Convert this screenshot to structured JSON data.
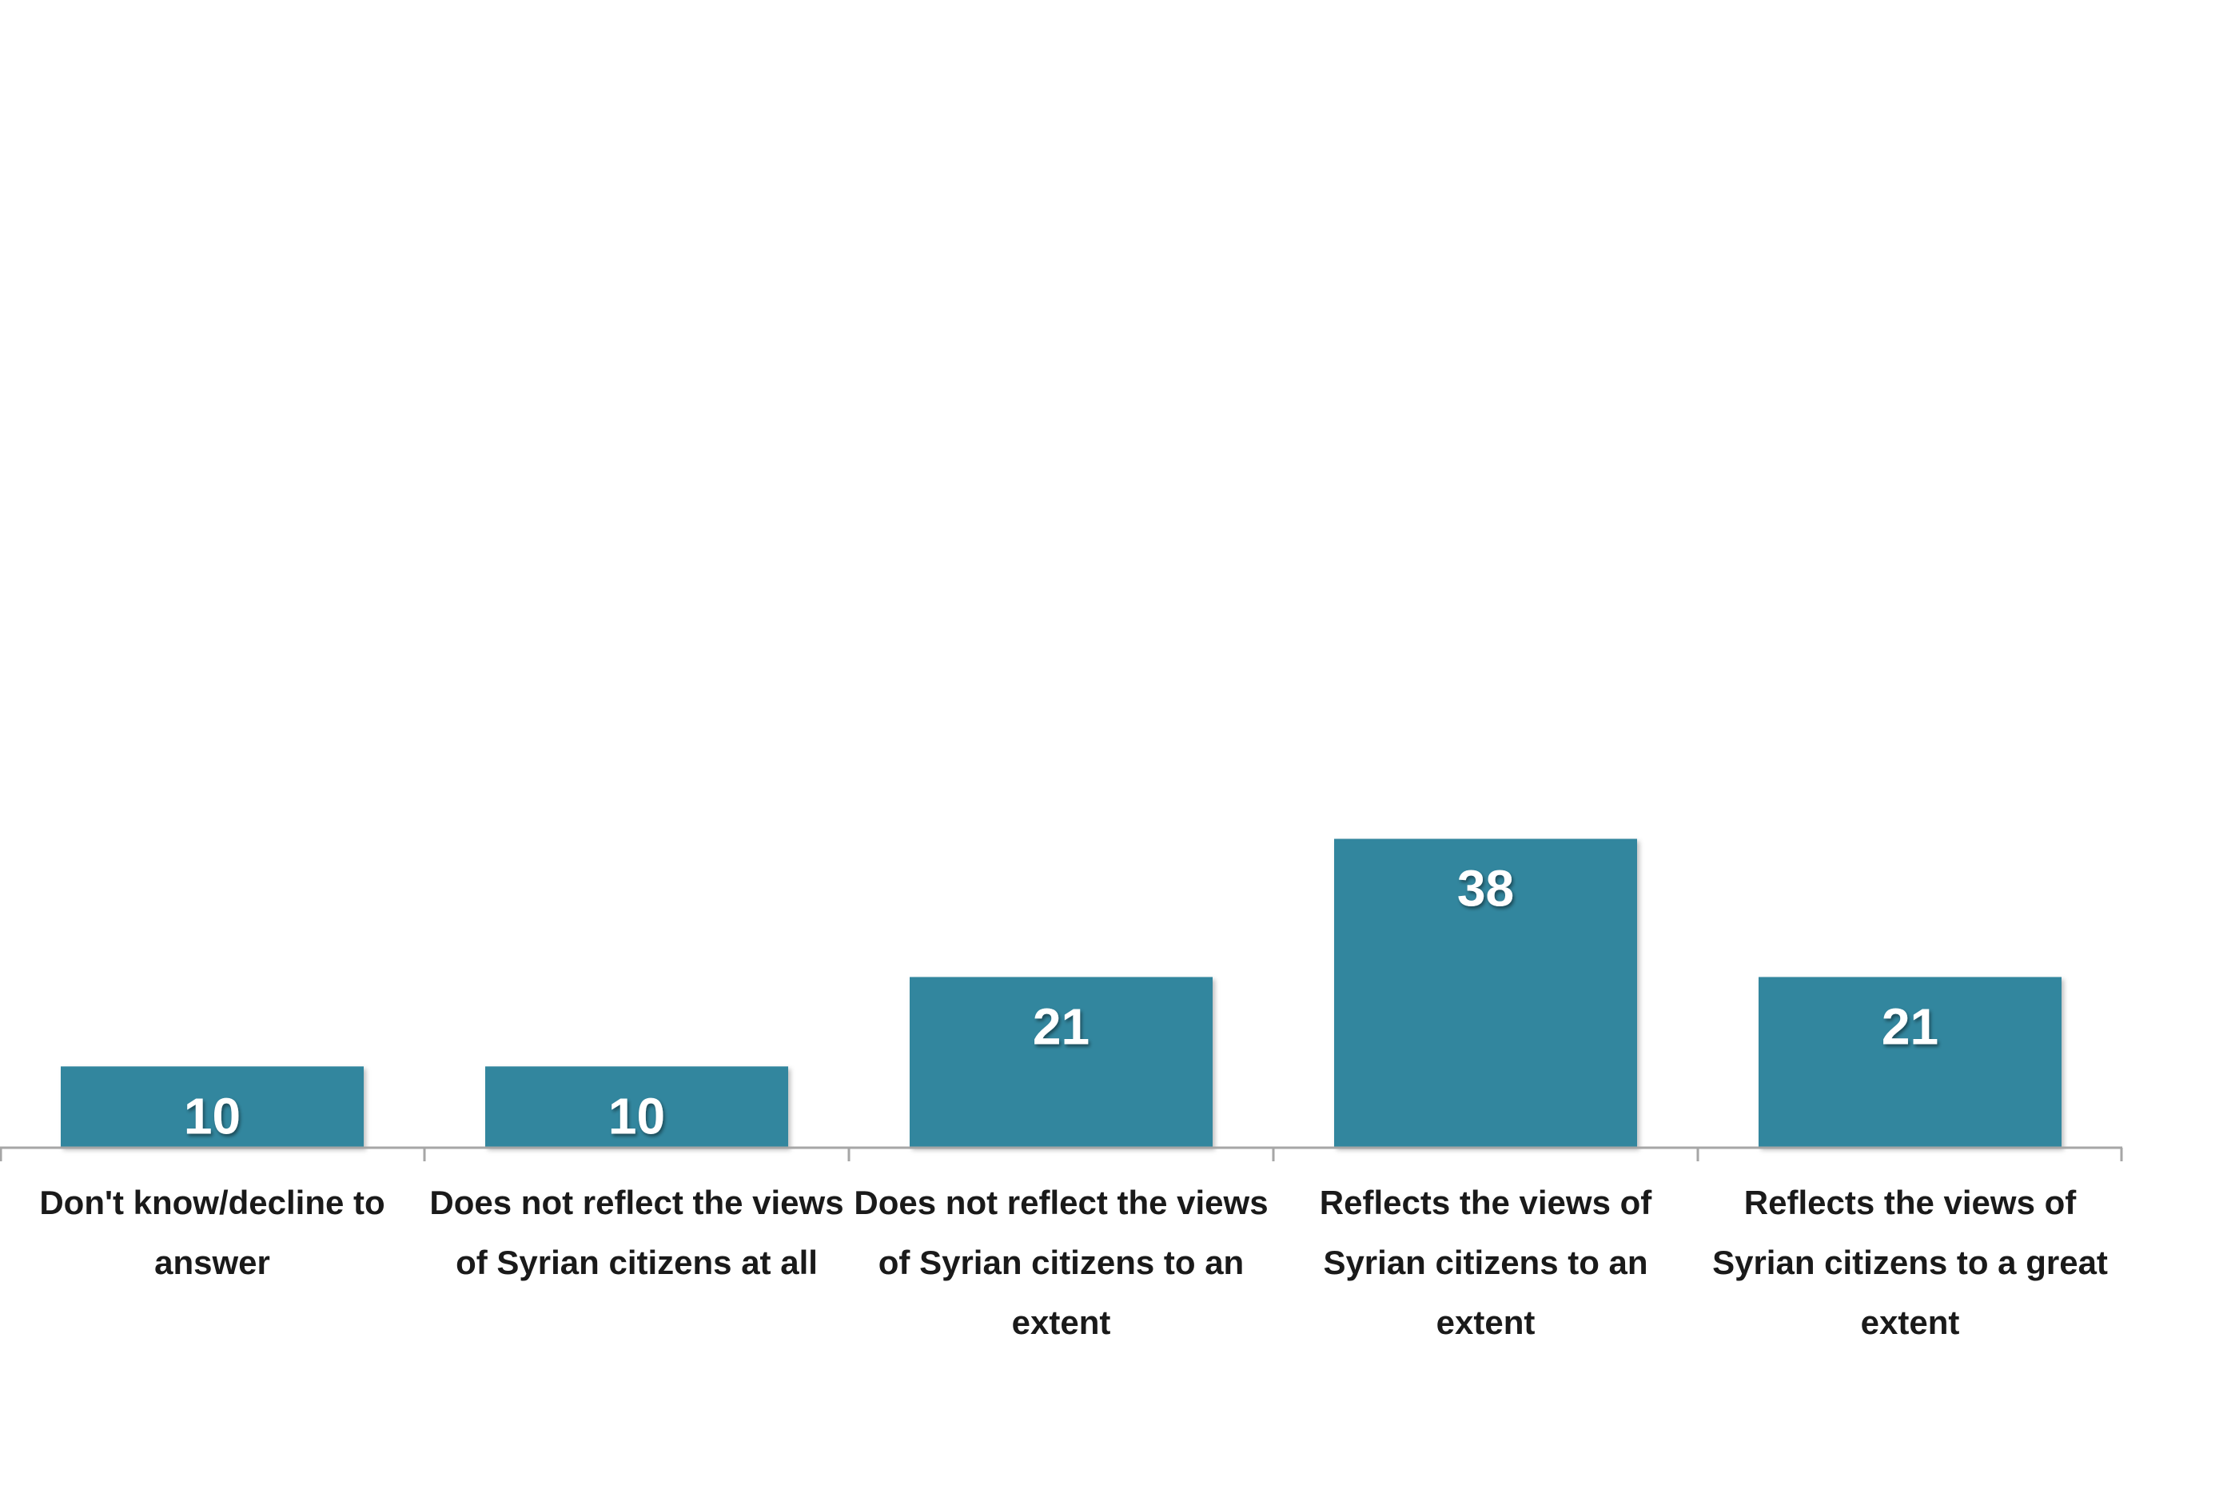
{
  "chart_data": {
    "type": "bar",
    "categories": [
      "Don't know/decline to answer",
      "Does not reflect the views of Syrian citizens at all",
      "Does not reflect the views of Syrian citizens to an extent",
      "Reflects the views of Syrian citizens to an extent",
      "Reflects the views of Syrian citizens to a great extent"
    ],
    "values": [
      10,
      10,
      21,
      38,
      21
    ],
    "data_labels": [
      "10",
      "10",
      "21",
      "38",
      "21"
    ],
    "title": "",
    "xlabel": "",
    "ylabel": "",
    "ylim": [
      0,
      60
    ],
    "grid": false,
    "legend": "none",
    "colors": {
      "bar": "#33869e",
      "axis": "#a6a6a6",
      "label_text": "#1a1a1a",
      "value_text": "#ffffff"
    }
  }
}
